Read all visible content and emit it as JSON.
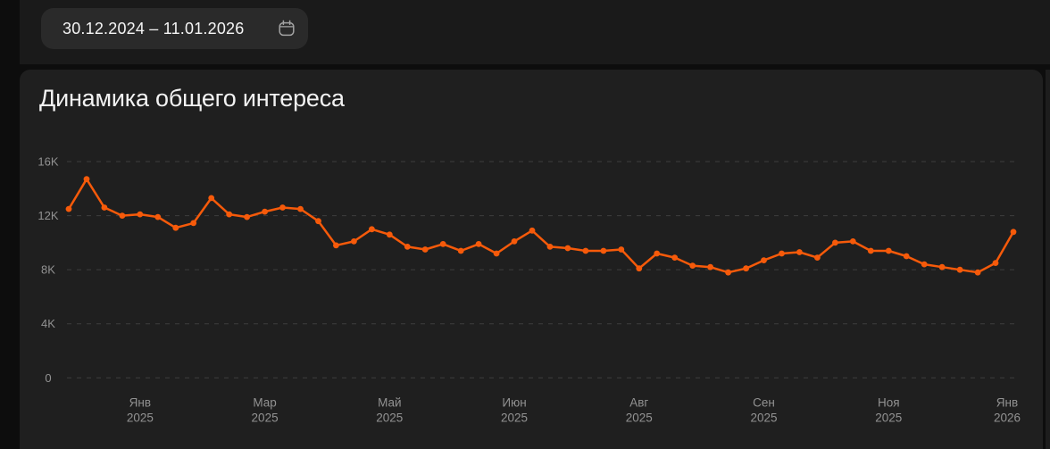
{
  "header": {
    "date_range": "30.12.2024 – 11.01.2026",
    "calendar_icon": "calendar-icon"
  },
  "card": {
    "title": "Динамика общего интереса"
  },
  "colors": {
    "accent_orange": "#f65a0a",
    "page_background": "#0d0d0d",
    "header_background": "#1a1a1a",
    "card_background": "#1f1f1f",
    "pill_background": "#2a2a2a",
    "gridline": "#3e3e3e",
    "axis_text": "#929292",
    "title_text": "#f2f2f2"
  },
  "chart_data": {
    "type": "line",
    "title": "Динамика общего интереса",
    "grid": "horizontal-dashed",
    "legend": "none",
    "ylim": [
      0,
      16800
    ],
    "y_ticks": [
      {
        "value": 0,
        "label": "0"
      },
      {
        "value": 4000,
        "label": "4K"
      },
      {
        "value": 8000,
        "label": "8K"
      },
      {
        "value": 12000,
        "label": "12K"
      },
      {
        "value": 16000,
        "label": "16K"
      }
    ],
    "x_ticks": [
      {
        "month": "Янв",
        "year": "2025",
        "point_index": 4
      },
      {
        "month": "Мар",
        "year": "2025",
        "point_index": 11
      },
      {
        "month": "Май",
        "year": "2025",
        "point_index": 18
      },
      {
        "month": "Июн",
        "year": "2025",
        "point_index": 25
      },
      {
        "month": "Авг",
        "year": "2025",
        "point_index": 32
      },
      {
        "month": "Сен",
        "year": "2025",
        "point_index": 39
      },
      {
        "month": "Ноя",
        "year": "2025",
        "point_index": 46
      },
      {
        "month": "Янв",
        "year": "2026",
        "point_index": 53
      }
    ],
    "values": [
      12500,
      14700,
      12600,
      12000,
      12100,
      11900,
      11100,
      11450,
      13300,
      12100,
      11900,
      12300,
      12600,
      12500,
      11600,
      9800,
      10100,
      11000,
      10600,
      9700,
      9500,
      9900,
      9400,
      9900,
      9200,
      10100,
      10900,
      9700,
      9600,
      9400,
      9400,
      9500,
      8100,
      9200,
      8900,
      8300,
      8200,
      7800,
      8100,
      8700,
      9200,
      9300,
      8900,
      10000,
      10100,
      9400,
      9400,
      9000,
      8400,
      8200,
      8000,
      7800,
      8500,
      10800
    ]
  }
}
